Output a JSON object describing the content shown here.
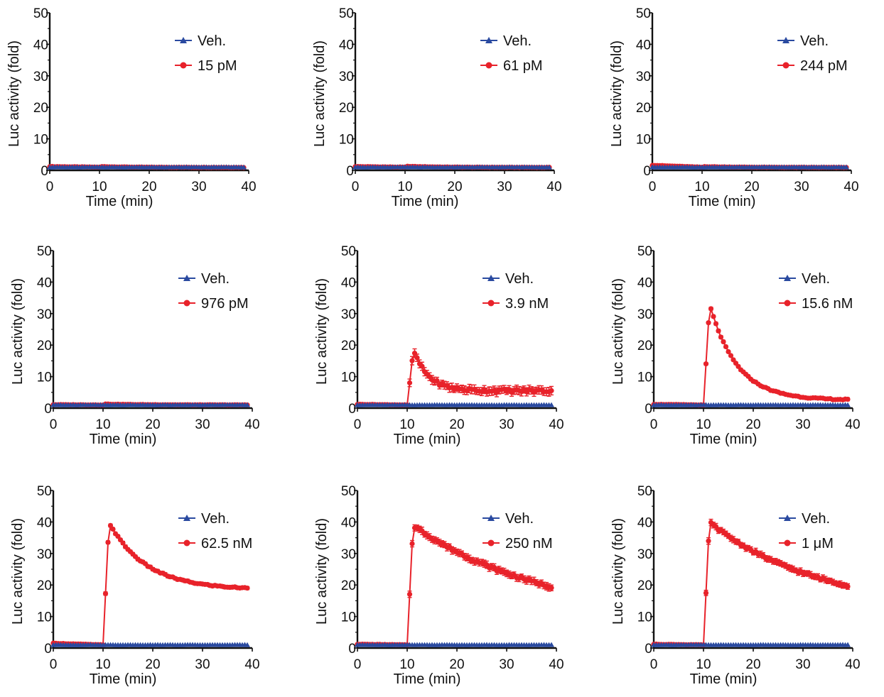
{
  "colors": {
    "vehicle": "#2a4aa0",
    "treatment": "#e8222a",
    "axis": "#111111"
  },
  "chart_data": [
    {
      "type": "line",
      "xlabel": "Time (min)",
      "ylabel": "Luc activity (fold)",
      "xlim": [
        0,
        40
      ],
      "ylim": [
        0,
        50
      ],
      "xticks": [
        "0",
        "10",
        "20",
        "30",
        "40"
      ],
      "yticks": [
        "0",
        "10",
        "20",
        "30",
        "40",
        "50"
      ],
      "legend_position": "top-right",
      "series": [
        {
          "name": "Veh.",
          "key": "vehicle",
          "marker": "triangle",
          "baseline": 1.0
        },
        {
          "name": "15 pM",
          "key": "treatment",
          "marker": "circle",
          "baseline": 1.2,
          "peak": 1.2,
          "plateau": 0.9,
          "decay": 8,
          "error": 0
        }
      ]
    },
    {
      "type": "line",
      "xlabel": "Time (min)",
      "ylabel": "Luc activity (fold)",
      "xlim": [
        0,
        40
      ],
      "ylim": [
        0,
        50
      ],
      "xticks": [
        "0",
        "10",
        "20",
        "30",
        "40"
      ],
      "yticks": [
        "0",
        "10",
        "20",
        "30",
        "40",
        "50"
      ],
      "legend_position": "top-right",
      "series": [
        {
          "name": "Veh.",
          "key": "vehicle",
          "marker": "triangle",
          "baseline": 1.0
        },
        {
          "name": "61 pM",
          "key": "treatment",
          "marker": "circle",
          "baseline": 1.2,
          "peak": 1.3,
          "plateau": 0.9,
          "decay": 8,
          "error": 0
        }
      ]
    },
    {
      "type": "line",
      "xlabel": "Time (min)",
      "ylabel": "Luc activity (fold)",
      "xlim": [
        0,
        40
      ],
      "ylim": [
        0,
        50
      ],
      "xticks": [
        "0",
        "10",
        "20",
        "30",
        "40"
      ],
      "yticks": [
        "0",
        "10",
        "20",
        "30",
        "40",
        "50"
      ],
      "legend_position": "top-right",
      "series": [
        {
          "name": "Veh.",
          "key": "vehicle",
          "marker": "triangle",
          "baseline": 1.0
        },
        {
          "name": "244 pM",
          "key": "treatment",
          "marker": "circle",
          "baseline": 1.6,
          "peak": 1.2,
          "plateau": 0.9,
          "decay": 8,
          "error": 0
        }
      ]
    },
    {
      "type": "line",
      "xlabel": "Time (min)",
      "ylabel": "Luc activity (fold)",
      "xlim": [
        0,
        40
      ],
      "ylim": [
        0,
        50
      ],
      "xticks": [
        "0",
        "10",
        "20",
        "30",
        "40"
      ],
      "yticks": [
        "0",
        "10",
        "20",
        "30",
        "40",
        "50"
      ],
      "legend_position": "top-right",
      "series": [
        {
          "name": "Veh.",
          "key": "vehicle",
          "marker": "triangle",
          "baseline": 1.0
        },
        {
          "name": "976 pM",
          "key": "treatment",
          "marker": "circle",
          "baseline": 1.1,
          "peak": 1.3,
          "plateau": 1.0,
          "decay": 8,
          "error": 0
        }
      ]
    },
    {
      "type": "line",
      "xlabel": "Time (min)",
      "ylabel": "Luc activity (fold)",
      "xlim": [
        0,
        40
      ],
      "ylim": [
        0,
        50
      ],
      "xticks": [
        "0",
        "10",
        "20",
        "30",
        "40"
      ],
      "yticks": [
        "0",
        "10",
        "20",
        "30",
        "40",
        "50"
      ],
      "legend_position": "top-right",
      "series": [
        {
          "name": "Veh.",
          "key": "vehicle",
          "marker": "triangle",
          "baseline": 1.0
        },
        {
          "name": "3.9 nM",
          "key": "treatment",
          "marker": "circle",
          "baseline": 1.2,
          "peak": 17.5,
          "plateau": 5.5,
          "decay": 3.0,
          "error": 1.8
        }
      ]
    },
    {
      "type": "line",
      "xlabel": "Time (min)",
      "ylabel": "Luc activity (fold)",
      "xlim": [
        0,
        40
      ],
      "ylim": [
        0,
        50
      ],
      "xticks": [
        "0",
        "10",
        "20",
        "30",
        "40"
      ],
      "yticks": [
        "0",
        "10",
        "20",
        "30",
        "40",
        "50"
      ],
      "legend_position": "top-right",
      "series": [
        {
          "name": "Veh.",
          "key": "vehicle",
          "marker": "triangle",
          "baseline": 1.0
        },
        {
          "name": "15.6 nM",
          "key": "treatment",
          "marker": "circle",
          "baseline": 1.2,
          "peak": 31.5,
          "plateau": 2.5,
          "decay": 5.5,
          "error": 0.6
        }
      ]
    },
    {
      "type": "line",
      "xlabel": "Time (min)",
      "ylabel": "Luc activity (fold)",
      "xlim": [
        0,
        40
      ],
      "ylim": [
        0,
        50
      ],
      "xticks": [
        "0",
        "10",
        "20",
        "30",
        "40"
      ],
      "yticks": [
        "0",
        "10",
        "20",
        "30",
        "40",
        "50"
      ],
      "legend_position": "top-right",
      "series": [
        {
          "name": "Veh.",
          "key": "vehicle",
          "marker": "triangle",
          "baseline": 1.0
        },
        {
          "name": "62.5 nM",
          "key": "treatment",
          "marker": "circle",
          "baseline": 1.5,
          "peak": 39.0,
          "plateau": 18.5,
          "decay": 7.5,
          "error": 0.7
        }
      ]
    },
    {
      "type": "line",
      "xlabel": "Time (min)",
      "ylabel": "Luc activity (fold)",
      "xlim": [
        0,
        40
      ],
      "ylim": [
        0,
        50
      ],
      "xticks": [
        "0",
        "10",
        "20",
        "30",
        "40"
      ],
      "yticks": [
        "0",
        "10",
        "20",
        "30",
        "40",
        "50"
      ],
      "legend_position": "top-right",
      "series": [
        {
          "name": "Veh.",
          "key": "vehicle",
          "marker": "triangle",
          "baseline": 1.0
        },
        {
          "name": "250 nM",
          "key": "treatment",
          "marker": "circle",
          "baseline": 1.2,
          "peak": 38.5,
          "plateau": 8.0,
          "decay": 28.0,
          "error": 1.5
        }
      ]
    },
    {
      "type": "line",
      "xlabel": "Time (min)",
      "ylabel": "Luc activity (fold)",
      "xlim": [
        0,
        40
      ],
      "ylim": [
        0,
        50
      ],
      "xticks": [
        "0",
        "10",
        "20",
        "30",
        "40"
      ],
      "yticks": [
        "0",
        "10",
        "20",
        "30",
        "40",
        "50"
      ],
      "legend_position": "top-right",
      "series": [
        {
          "name": "Veh.",
          "key": "vehicle",
          "marker": "triangle",
          "baseline": 1.0
        },
        {
          "name": "1 μM",
          "key": "treatment",
          "marker": "circle",
          "baseline": 1.2,
          "peak": 39.5,
          "plateau": 12.0,
          "decay": 22.0,
          "error": 1.3
        }
      ]
    }
  ]
}
